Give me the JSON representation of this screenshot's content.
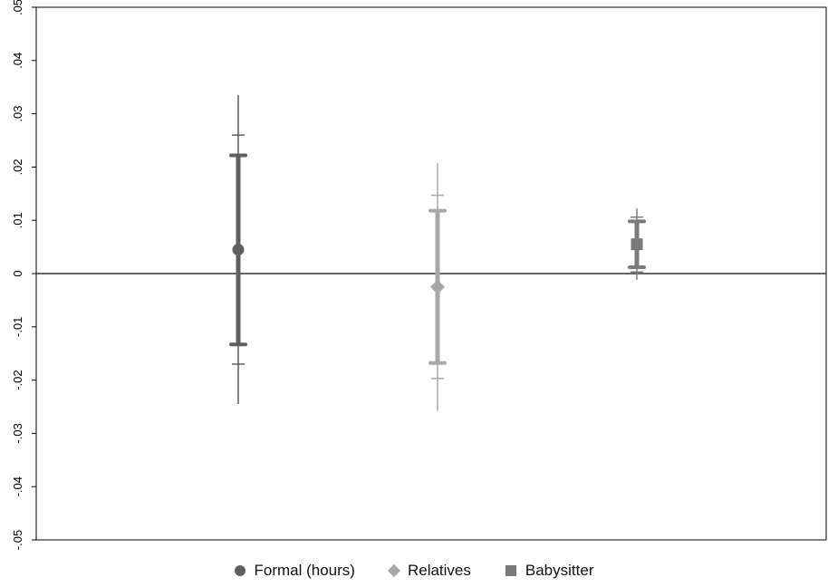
{
  "chart_data": {
    "type": "scatter",
    "subtype": "coefficient plot with confidence intervals",
    "title": "",
    "xlabel": "",
    "ylabel": "",
    "ylim": [
      -0.05,
      0.05
    ],
    "yticks": [
      -0.05,
      -0.04,
      -0.03,
      -0.02,
      -0.01,
      0,
      0.01,
      0.02,
      0.03,
      0.04,
      0.05
    ],
    "ytick_labels": [
      "-.05",
      "-.04",
      "-.03",
      "-.02",
      "-.01",
      "0",
      ".01",
      ".02",
      ".03",
      ".04",
      ".05"
    ],
    "reference_line": 0,
    "grid": false,
    "legend_position": "bottom-center",
    "series": [
      {
        "name": "Formal (hours)",
        "marker": "circle",
        "color": "#5f5f5f",
        "estimate": 0.0045,
        "ci_inner": [
          -0.0133,
          0.0222
        ],
        "ci_mid": [
          -0.017,
          0.026
        ],
        "ci_outer": [
          -0.0245,
          0.0335
        ]
      },
      {
        "name": "Relatives",
        "marker": "diamond",
        "color": "#a8a8a8",
        "estimate": -0.0025,
        "ci_inner": [
          -0.0168,
          0.0118
        ],
        "ci_mid": [
          -0.0197,
          0.0147
        ],
        "ci_outer": [
          -0.0258,
          0.0207
        ]
      },
      {
        "name": "Babysitter",
        "marker": "square",
        "color": "#7a7a7a",
        "estimate": 0.0055,
        "ci_inner": [
          0.0012,
          0.0098
        ],
        "ci_mid": [
          0.0003,
          0.0106
        ],
        "ci_outer": [
          -0.0012,
          0.0122
        ]
      }
    ]
  }
}
